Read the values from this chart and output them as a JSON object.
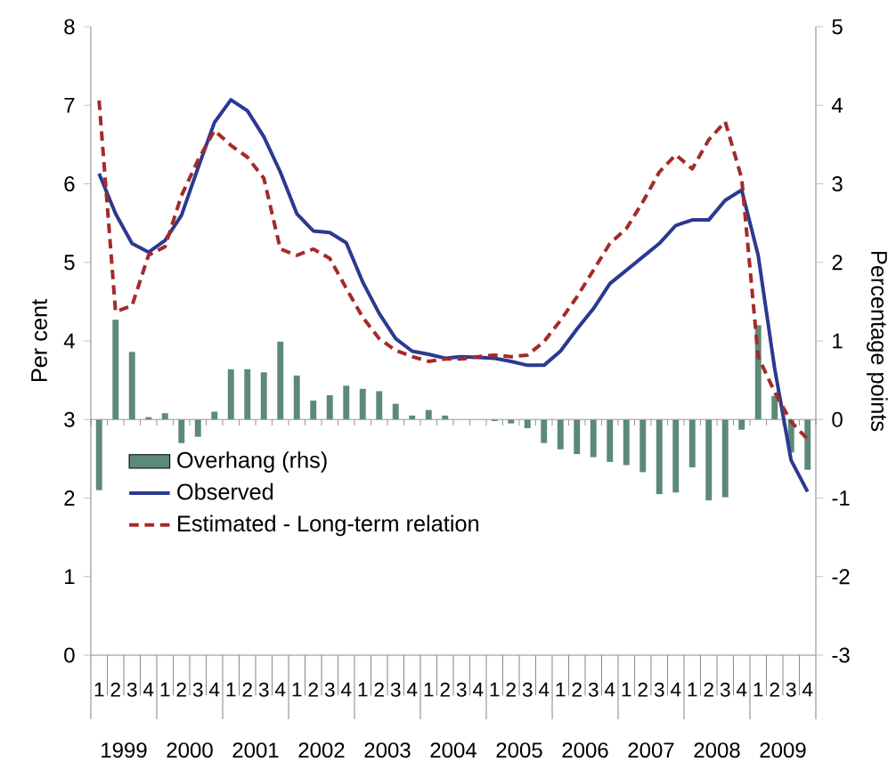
{
  "chart_data": {
    "type": "line",
    "ylabel": "Per cent",
    "y2label": "Percentage points",
    "categories": [
      "1",
      "2",
      "3",
      "4",
      "1",
      "2",
      "3",
      "4",
      "1",
      "2",
      "3",
      "4",
      "1",
      "2",
      "3",
      "4",
      "1",
      "2",
      "3",
      "4",
      "1",
      "2",
      "3",
      "4",
      "1",
      "2",
      "3",
      "4",
      "1",
      "2",
      "3",
      "4",
      "1",
      "2",
      "3",
      "4",
      "1",
      "2",
      "3",
      "4",
      "1",
      "2",
      "3",
      "4"
    ],
    "annotations": [
      "1999",
      "2000",
      "2001",
      "2002",
      "2003",
      "2004",
      "2005",
      "2006",
      "2007",
      "2008",
      "2009"
    ],
    "series": [
      {
        "name": "Overhang (rhs)",
        "type": "bar",
        "axis": "y2",
        "color": "#5b8a77",
        "values": [
          -0.9,
          1.27,
          0.86,
          0.03,
          0.08,
          -0.3,
          -0.22,
          0.1,
          0.64,
          0.64,
          0.6,
          0.99,
          0.56,
          0.24,
          0.31,
          0.43,
          0.39,
          0.36,
          0.2,
          0.05,
          0.12,
          0.05,
          0,
          0,
          -0.02,
          -0.05,
          -0.11,
          -0.3,
          -0.38,
          -0.44,
          -0.48,
          -0.54,
          -0.58,
          -0.67,
          -0.95,
          -0.93,
          -0.61,
          -1.03,
          -0.99,
          -0.13,
          1.2,
          0.3,
          -0.42,
          -0.64
        ]
      },
      {
        "name": "Observed",
        "line_style": "solid",
        "color": "#2b3990",
        "values": [
          6.13,
          5.62,
          5.24,
          5.13,
          5.28,
          5.6,
          6.2,
          6.78,
          7.07,
          6.93,
          6.6,
          6.15,
          5.62,
          5.4,
          5.38,
          5.25,
          4.75,
          4.35,
          4.03,
          3.87,
          3.83,
          3.78,
          3.8,
          3.79,
          3.78,
          3.74,
          3.69,
          3.69,
          3.87,
          4.15,
          4.41,
          4.73,
          4.9,
          5.07,
          5.24,
          5.47,
          5.54,
          5.54,
          5.79,
          5.92,
          5.09,
          3.65,
          2.48,
          2.08
        ]
      },
      {
        "name": "Estimated - Long-term relation",
        "line_style": "dashed",
        "color": "#a52a2a",
        "values": [
          7.06,
          4.37,
          4.45,
          5.09,
          5.2,
          5.85,
          6.3,
          6.68,
          6.49,
          6.34,
          6.07,
          5.17,
          5.09,
          5.17,
          5.05,
          4.67,
          4.3,
          4.03,
          3.88,
          3.8,
          3.74,
          3.77,
          3.77,
          3.8,
          3.82,
          3.8,
          3.82,
          3.99,
          4.26,
          4.56,
          4.9,
          5.24,
          5.43,
          5.77,
          6.15,
          6.37,
          6.19,
          6.56,
          6.79,
          6.07,
          3.8,
          3.35,
          2.97,
          2.75
        ]
      }
    ],
    "ylim": [
      0,
      8
    ],
    "yticks": [
      0,
      1,
      2,
      3,
      4,
      5,
      6,
      7,
      8
    ],
    "y2lim": [
      -3,
      5
    ],
    "y2ticks": [
      -3,
      -2,
      -1,
      0,
      1,
      2,
      3,
      4,
      5
    ],
    "ref_lines": [
      {
        "axis": "y2",
        "value": 0,
        "color": "#999999"
      }
    ],
    "marker": "none",
    "grid": false,
    "legend": "bottom left"
  }
}
